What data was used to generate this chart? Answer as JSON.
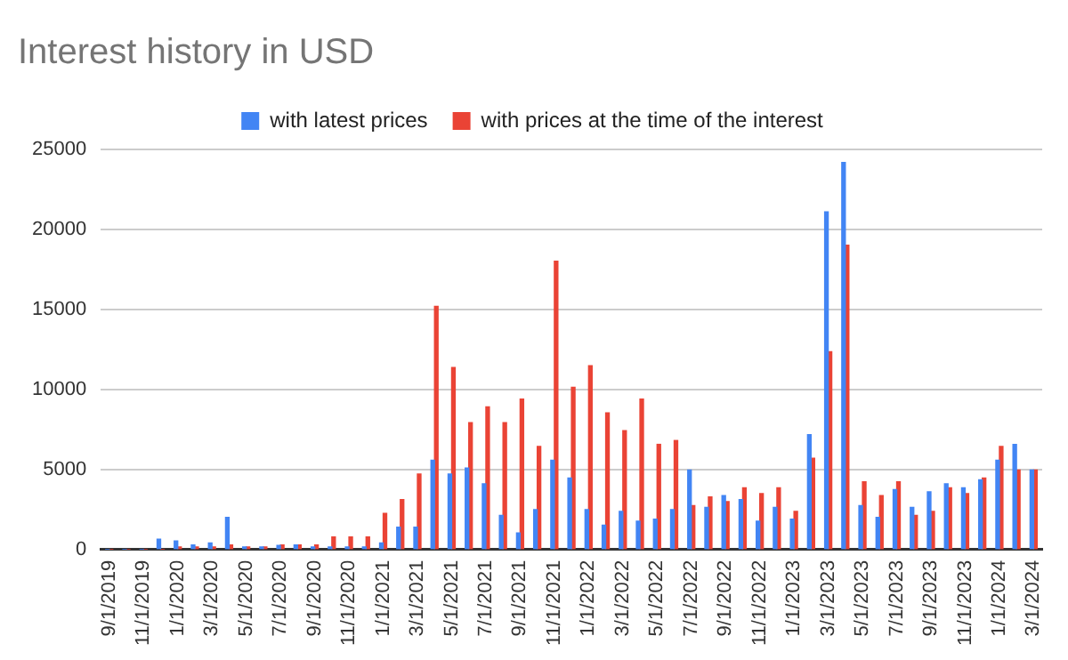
{
  "chart_data": {
    "type": "bar",
    "title": "Interest history in USD",
    "categories": [
      "9/1/2019",
      null,
      "11/1/2019",
      null,
      "1/1/2020",
      null,
      "3/1/2020",
      null,
      "5/1/2020",
      null,
      "7/1/2020",
      null,
      "9/1/2020",
      null,
      "11/1/2020",
      null,
      "1/1/2021",
      null,
      "3/1/2021",
      null,
      "5/1/2021",
      null,
      "7/1/2021",
      null,
      "9/1/2021",
      null,
      "11/1/2021",
      null,
      "1/1/2022",
      null,
      "3/1/2022",
      null,
      "5/1/2022",
      null,
      "7/1/2022",
      null,
      "9/1/2022",
      null,
      "11/1/2022",
      null,
      "1/1/2023",
      null,
      "3/1/2023",
      null,
      "5/1/2023",
      null,
      "7/1/2023",
      null,
      "9/1/2023",
      null,
      "11/1/2023",
      null,
      "1/1/2024",
      null,
      "3/1/2024"
    ],
    "series": [
      {
        "name": "with latest prices",
        "color": "#4285f4",
        "values": [
          0,
          0,
          0,
          650,
          530,
          290,
          410,
          2010,
          160,
          160,
          250,
          290,
          160,
          160,
          160,
          160,
          410,
          1400,
          1400,
          5580,
          4720,
          5090,
          4100,
          2130,
          1030,
          2500,
          5580,
          4470,
          2500,
          1520,
          2380,
          1770,
          1890,
          2500,
          4970,
          2630,
          3370,
          3120,
          1770,
          2630,
          1890,
          7180,
          21100,
          24180,
          2750,
          2010,
          3740,
          2630,
          3610,
          4100,
          3860,
          4350,
          5580,
          6570,
          4970
        ]
      },
      {
        "name": "with prices at the time of the interest",
        "color": "#ea4335",
        "values": [
          0,
          0,
          0,
          0,
          160,
          160,
          160,
          290,
          160,
          160,
          290,
          290,
          290,
          780,
          780,
          780,
          2260,
          3120,
          4720,
          15190,
          11370,
          7920,
          8910,
          7920,
          9400,
          6440,
          18020,
          10140,
          11490,
          8540,
          7430,
          9400,
          6570,
          6810,
          2750,
          3280,
          3000,
          3860,
          3490,
          3860,
          2380,
          5710,
          12360,
          19010,
          4230,
          3370,
          4230,
          2130,
          2380,
          3860,
          3490,
          4470,
          6440,
          4970,
          4970
        ]
      }
    ],
    "ylim": [
      0,
      25000
    ],
    "yticks": [
      0,
      5000,
      10000,
      15000,
      20000,
      25000
    ],
    "grid": "y",
    "legend": "top"
  }
}
